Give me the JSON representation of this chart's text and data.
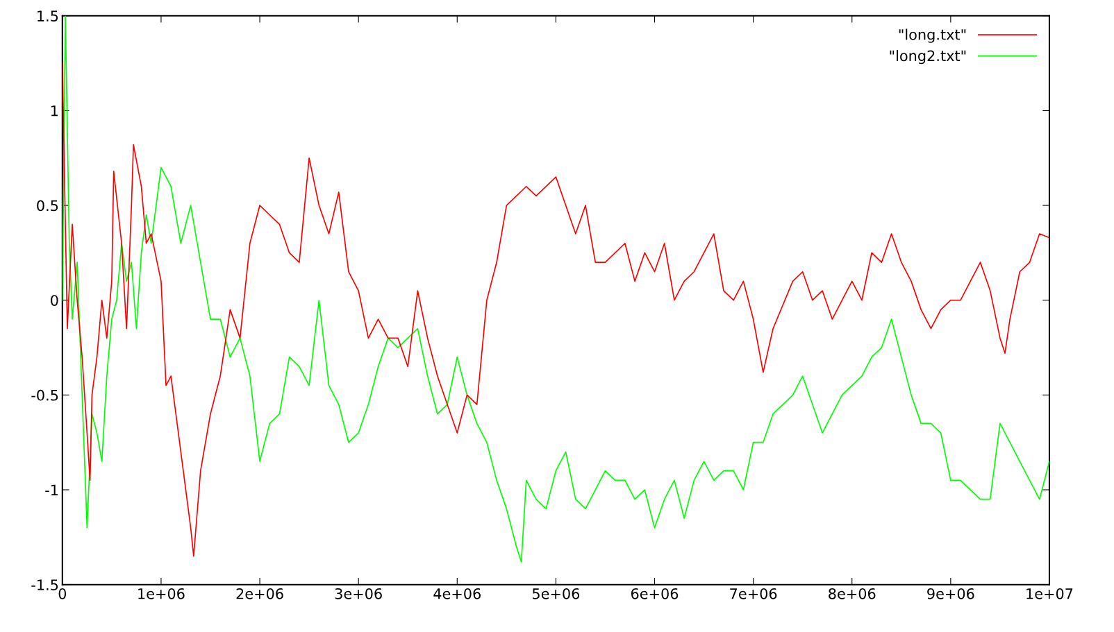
{
  "chart_data": {
    "type": "line",
    "xlim": [
      0,
      10000000
    ],
    "ylim": [
      -1.5,
      1.5
    ],
    "xticks": [
      0,
      {
        "value": 1000000,
        "label": "1e+06"
      },
      {
        "value": 2000000,
        "label": "2e+06"
      },
      {
        "value": 3000000,
        "label": "3e+06"
      },
      {
        "value": 4000000,
        "label": "4e+06"
      },
      {
        "value": 5000000,
        "label": "5e+06"
      },
      {
        "value": 6000000,
        "label": "6e+06"
      },
      {
        "value": 7000000,
        "label": "7e+06"
      },
      {
        "value": 8000000,
        "label": "8e+06"
      },
      {
        "value": 9000000,
        "label": "9e+06"
      },
      {
        "value": 10000000,
        "label": "1e+07"
      }
    ],
    "yticks": [
      -1.5,
      -1,
      -0.5,
      0,
      0.5,
      1,
      1.5
    ],
    "grid": false,
    "legend": "top right",
    "marker": "none",
    "line_style": "solid",
    "series": [
      {
        "name": "\"long.txt\"",
        "color": "#ff0000",
        "x": [
          0,
          50000,
          100000,
          150000,
          200000,
          250000,
          280000,
          300000,
          350000,
          400000,
          450000,
          500000,
          520000,
          600000,
          650000,
          700000,
          720000,
          800000,
          850000,
          900000,
          1000000,
          1050000,
          1100000,
          1200000,
          1300000,
          1330000,
          1400000,
          1500000,
          1600000,
          1700000,
          1800000,
          1900000,
          2000000,
          2100000,
          2200000,
          2300000,
          2400000,
          2500000,
          2600000,
          2700000,
          2800000,
          2900000,
          3000000,
          3100000,
          3200000,
          3300000,
          3400000,
          3500000,
          3600000,
          3700000,
          3800000,
          3900000,
          4000000,
          4100000,
          4200000,
          4300000,
          4400000,
          4500000,
          4700000,
          4800000,
          5000000,
          5100000,
          5200000,
          5300000,
          5400000,
          5500000,
          5700000,
          5800000,
          5900000,
          6000000,
          6100000,
          6200000,
          6300000,
          6400000,
          6500000,
          6600000,
          6700000,
          6800000,
          6900000,
          7000000,
          7100000,
          7200000,
          7400000,
          7500000,
          7600000,
          7700000,
          7800000,
          7900000,
          8000000,
          8100000,
          8200000,
          8300000,
          8400000,
          8500000,
          8600000,
          8700000,
          8800000,
          8900000,
          9000000,
          9100000,
          9200000,
          9300000,
          9400000,
          9500000,
          9550000,
          9600000,
          9700000,
          9800000,
          9900000,
          10000000
        ],
        "values": [
          1.25,
          -0.15,
          0.4,
          0.0,
          -0.3,
          -0.7,
          -0.95,
          -0.5,
          -0.3,
          0.0,
          -0.2,
          0.1,
          0.68,
          0.3,
          -0.15,
          0.5,
          0.82,
          0.6,
          0.3,
          0.35,
          0.1,
          -0.45,
          -0.4,
          -0.8,
          -1.2,
          -1.35,
          -0.9,
          -0.6,
          -0.4,
          -0.05,
          -0.2,
          0.3,
          0.5,
          0.45,
          0.4,
          0.25,
          0.2,
          0.75,
          0.5,
          0.35,
          0.57,
          0.15,
          0.05,
          -0.2,
          -0.1,
          -0.2,
          -0.2,
          -0.35,
          0.05,
          -0.2,
          -0.4,
          -0.55,
          -0.7,
          -0.5,
          -0.55,
          0.0,
          0.2,
          0.5,
          0.6,
          0.55,
          0.65,
          0.5,
          0.35,
          0.5,
          0.2,
          0.2,
          0.3,
          0.1,
          0.25,
          0.15,
          0.3,
          0.0,
          0.1,
          0.15,
          0.25,
          0.35,
          0.05,
          0.0,
          0.1,
          -0.1,
          -0.38,
          -0.15,
          0.1,
          0.15,
          0.0,
          0.05,
          -0.1,
          0.0,
          0.1,
          0.0,
          0.25,
          0.2,
          0.35,
          0.2,
          0.1,
          -0.05,
          -0.15,
          -0.05,
          0.0,
          0.0,
          0.1,
          0.2,
          0.05,
          -0.2,
          -0.28,
          -0.1,
          0.15,
          0.2,
          0.35,
          0.33
        ]
      },
      {
        "name": "\"long2.txt\"",
        "color": "#00ff00",
        "x": [
          0,
          30000,
          70000,
          100000,
          150000,
          200000,
          250000,
          300000,
          350000,
          400000,
          450000,
          500000,
          550000,
          600000,
          650000,
          700000,
          750000,
          800000,
          850000,
          900000,
          1000000,
          1100000,
          1200000,
          1300000,
          1400000,
          1500000,
          1600000,
          1700000,
          1800000,
          1900000,
          2000000,
          2100000,
          2200000,
          2300000,
          2400000,
          2500000,
          2600000,
          2700000,
          2800000,
          2900000,
          3000000,
          3100000,
          3200000,
          3300000,
          3400000,
          3500000,
          3600000,
          3700000,
          3800000,
          3900000,
          4000000,
          4100000,
          4200000,
          4300000,
          4400000,
          4500000,
          4600000,
          4650000,
          4700000,
          4800000,
          4900000,
          5000000,
          5100000,
          5200000,
          5300000,
          5400000,
          5500000,
          5600000,
          5700000,
          5800000,
          5900000,
          6000000,
          6100000,
          6200000,
          6300000,
          6400000,
          6500000,
          6600000,
          6700000,
          6800000,
          6900000,
          7000000,
          7100000,
          7200000,
          7300000,
          7400000,
          7500000,
          7600000,
          7700000,
          7800000,
          7900000,
          8000000,
          8100000,
          8200000,
          8300000,
          8400000,
          8500000,
          8600000,
          8700000,
          8800000,
          8900000,
          9000000,
          9100000,
          9200000,
          9300000,
          9400000,
          9500000,
          9600000,
          9700000,
          9800000,
          9900000,
          10000000
        ],
        "values": [
          0.0,
          1.5,
          0.3,
          -0.1,
          0.2,
          -0.5,
          -1.2,
          -0.6,
          -0.7,
          -0.85,
          -0.4,
          -0.1,
          0.0,
          0.3,
          0.1,
          0.2,
          -0.15,
          0.25,
          0.45,
          0.3,
          0.7,
          0.6,
          0.3,
          0.5,
          0.2,
          -0.1,
          -0.1,
          -0.3,
          -0.2,
          -0.4,
          -0.85,
          -0.65,
          -0.6,
          -0.3,
          -0.35,
          -0.45,
          0.0,
          -0.45,
          -0.55,
          -0.75,
          -0.7,
          -0.55,
          -0.35,
          -0.2,
          -0.25,
          -0.2,
          -0.15,
          -0.4,
          -0.6,
          -0.55,
          -0.3,
          -0.5,
          -0.65,
          -0.75,
          -0.95,
          -1.1,
          -1.3,
          -1.38,
          -0.95,
          -1.05,
          -1.1,
          -0.9,
          -0.8,
          -1.05,
          -1.1,
          -1.0,
          -0.9,
          -0.95,
          -0.95,
          -1.05,
          -1.0,
          -1.2,
          -1.05,
          -0.95,
          -1.15,
          -0.95,
          -0.85,
          -0.95,
          -0.9,
          -0.9,
          -1.0,
          -0.75,
          -0.75,
          -0.6,
          -0.55,
          -0.5,
          -0.4,
          -0.55,
          -0.7,
          -0.6,
          -0.5,
          -0.45,
          -0.4,
          -0.3,
          -0.25,
          -0.1,
          -0.3,
          -0.5,
          -0.65,
          -0.65,
          -0.7,
          -0.95,
          -0.95,
          -1.0,
          -1.05,
          -1.05,
          -0.65,
          -0.75,
          -0.85,
          -0.95,
          -1.05,
          -0.85
        ]
      }
    ]
  }
}
